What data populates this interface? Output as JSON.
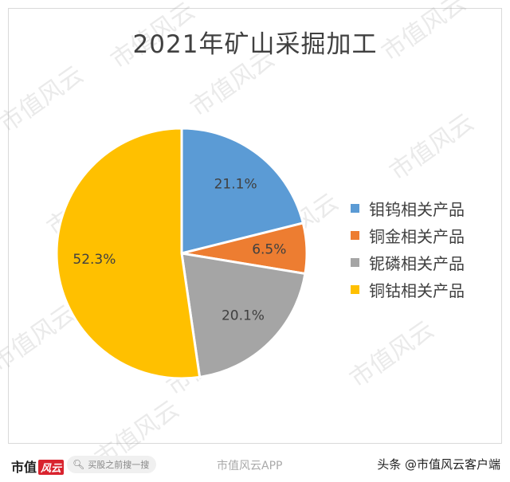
{
  "chart_data": {
    "type": "pie",
    "title": "2021年矿山采掘加工",
    "slices": [
      {
        "label": "钼钨相关产品",
        "value": 21.1,
        "display": "21.1%",
        "color": "#5b9bd5"
      },
      {
        "label": "铜金相关产品",
        "value": 6.5,
        "display": "6.5%",
        "color": "#ed7d31"
      },
      {
        "label": "铌磷相关产品",
        "value": 20.1,
        "display": "20.1%",
        "color": "#a5a5a5"
      },
      {
        "label": "铜钴相关产品",
        "value": 52.3,
        "display": "52.3%",
        "color": "#ffc000"
      }
    ],
    "legend_position": "right"
  },
  "watermark_text": "市值风云",
  "footer": {
    "brand_text": "市值",
    "brand_badge": "风云",
    "search_placeholder": "买股之前搜一搜",
    "mid_text": "市值风云APP",
    "right_text": "头条 @市值风云客户端"
  }
}
